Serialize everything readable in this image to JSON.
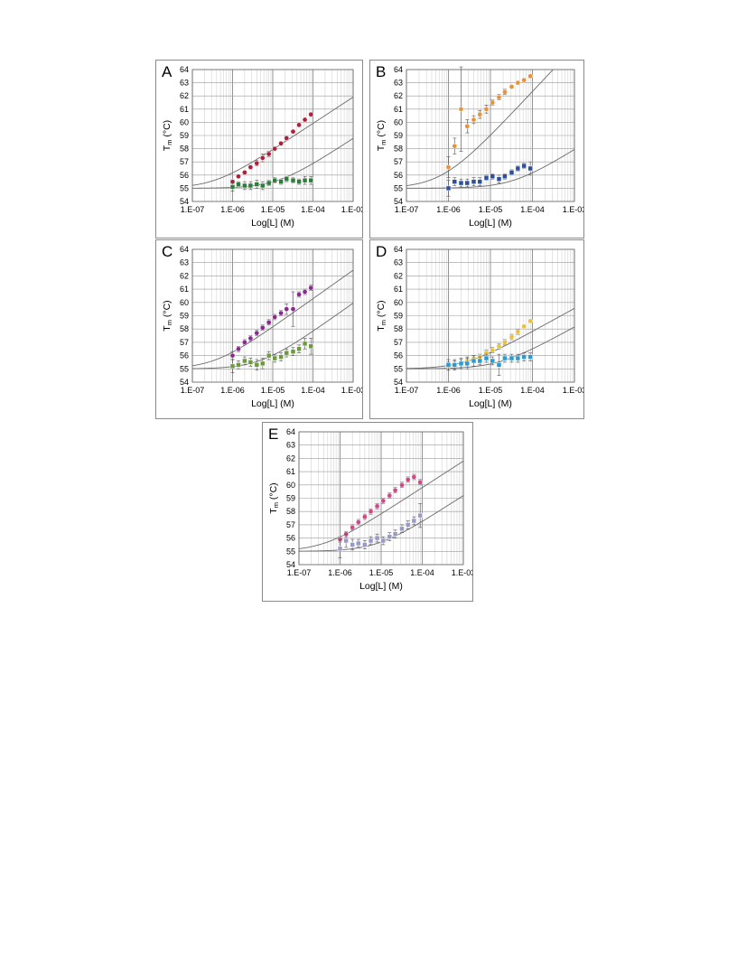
{
  "chart_data": [
    {
      "panel_label": "A",
      "type": "scatter",
      "xscale": "log",
      "xlim": [
        1e-07,
        0.001
      ],
      "ylim": [
        54,
        64
      ],
      "yticks": [
        "54",
        "55",
        "56",
        "57",
        "58",
        "59",
        "60",
        "61",
        "62",
        "63",
        "64"
      ],
      "xticks": [
        "1.E-07",
        "1.E-06",
        "1.E-05",
        "1.E-04",
        "1.E-03"
      ],
      "ylabel": "T",
      "ylabel_sub": "m",
      "ylabel_unit": " (°C)",
      "xlabel": "Log[L] (M)",
      "grid": true,
      "series": [
        {
          "marker": "circle",
          "color": "#b0203a",
          "x": [
            1e-06,
            1.4e-06,
            2e-06,
            2.8e-06,
            4e-06,
            5.6e-06,
            8e-06,
            1.12e-05,
            1.6e-05,
            2.2e-05,
            3.2e-05,
            4.5e-05,
            6.3e-05,
            8.9e-05
          ],
          "y": [
            55.5,
            55.9,
            56.2,
            56.6,
            56.9,
            57.3,
            57.6,
            58.0,
            58.4,
            58.8,
            59.3,
            59.8,
            60.2,
            60.6
          ],
          "err": [
            0.15,
            0.1,
            0.1,
            0.15,
            0.2,
            0.3,
            0.2,
            0.1,
            0.1,
            0.15,
            0.1,
            0.1,
            0.1,
            0.1
          ]
        },
        {
          "marker": "square",
          "color": "#2e7d3a",
          "x": [
            1e-06,
            1.4e-06,
            2e-06,
            2.8e-06,
            4e-06,
            5.6e-06,
            8e-06,
            1.12e-05,
            1.6e-05,
            2.2e-05,
            3.2e-05,
            4.5e-05,
            6.3e-05,
            8.9e-05
          ],
          "y": [
            55.1,
            55.3,
            55.2,
            55.2,
            55.3,
            55.2,
            55.4,
            55.6,
            55.5,
            55.7,
            55.6,
            55.5,
            55.6,
            55.6
          ],
          "err": [
            0.3,
            0.2,
            0.3,
            0.3,
            0.3,
            0.3,
            0.2,
            0.2,
            0.2,
            0.2,
            0.2,
            0.2,
            0.3,
            0.3
          ]
        }
      ],
      "fit_curves": [
        {
          "baseline": 55.0,
          "x0": 3.5e-07,
          "slope": 2.0
        },
        {
          "baseline": 55.0,
          "x0": 1.3e-05,
          "slope": 2.0
        }
      ]
    },
    {
      "panel_label": "B",
      "type": "scatter",
      "xscale": "log",
      "xlim": [
        1e-07,
        0.001
      ],
      "ylim": [
        54,
        64
      ],
      "yticks": [
        "54",
        "55",
        "56",
        "57",
        "58",
        "59",
        "60",
        "61",
        "62",
        "63",
        "64"
      ],
      "xticks": [
        "1.E-07",
        "1.E-06",
        "1.E-05",
        "1.E-04",
        "1.E-03"
      ],
      "ylabel": "T",
      "ylabel_sub": "m",
      "ylabel_unit": " (°C)",
      "xlabel": "Log[L] (M)",
      "grid": true,
      "series": [
        {
          "marker": "circle",
          "color": "#e8923a",
          "x": [
            1e-06,
            1.4e-06,
            2e-06,
            2.8e-06,
            4e-06,
            5.6e-06,
            8e-06,
            1.12e-05,
            1.6e-05,
            2.2e-05,
            3.2e-05,
            4.5e-05,
            6.3e-05,
            8.9e-05
          ],
          "y": [
            56.6,
            58.2,
            61.0,
            59.7,
            60.2,
            60.6,
            61.0,
            61.5,
            61.9,
            62.3,
            62.7,
            63.0,
            63.2,
            63.5
          ],
          "err": [
            0.8,
            0.6,
            3.2,
            0.5,
            0.3,
            0.3,
            0.3,
            0.2,
            0.2,
            0.2,
            0.1,
            0.1,
            0.1,
            0.1
          ]
        },
        {
          "marker": "square",
          "color": "#2e4f9a",
          "x": [
            1e-06,
            1.4e-06,
            2e-06,
            2.8e-06,
            4e-06,
            5.6e-06,
            8e-06,
            1.12e-05,
            1.6e-05,
            2.2e-05,
            3.2e-05,
            4.5e-05,
            6.3e-05,
            8.9e-05
          ],
          "y": [
            55.0,
            55.5,
            55.4,
            55.4,
            55.5,
            55.5,
            55.8,
            55.9,
            55.7,
            55.9,
            56.2,
            56.5,
            56.7,
            56.5
          ],
          "err": [
            0.6,
            0.3,
            0.3,
            0.3,
            0.3,
            0.3,
            0.2,
            0.2,
            0.3,
            0.2,
            0.2,
            0.2,
            0.2,
            0.5
          ]
        }
      ],
      "fit_curves": [
        {
          "baseline": 55.0,
          "x0": 7e-07,
          "slope": 3.4
        },
        {
          "baseline": 55.0,
          "x0": 3.5e-05,
          "slope": 2.0
        }
      ]
    },
    {
      "panel_label": "C",
      "type": "scatter",
      "xscale": "log",
      "xlim": [
        1e-07,
        0.001
      ],
      "ylim": [
        54,
        64
      ],
      "yticks": [
        "54",
        "55",
        "56",
        "57",
        "58",
        "59",
        "60",
        "61",
        "62",
        "63",
        "64"
      ],
      "xticks": [
        "1.E-07",
        "1.E-06",
        "1.E-05",
        "1.E-04",
        "1.E-03"
      ],
      "ylabel": "T",
      "ylabel_sub": "m",
      "ylabel_unit": " (°C)",
      "xlabel": "Log[L] (M)",
      "grid": true,
      "series": [
        {
          "marker": "circle",
          "color": "#8a2a8e",
          "x": [
            1e-06,
            1.4e-06,
            2e-06,
            2.8e-06,
            4e-06,
            5.6e-06,
            8e-06,
            1.12e-05,
            1.6e-05,
            2.2e-05,
            3.2e-05,
            4.5e-05,
            6.3e-05,
            8.9e-05
          ],
          "y": [
            56.0,
            56.5,
            57.0,
            57.3,
            57.7,
            58.1,
            58.5,
            58.9,
            59.2,
            59.5,
            59.5,
            60.6,
            60.8,
            61.1
          ],
          "err": [
            0.3,
            0.2,
            0.2,
            0.2,
            0.2,
            0.2,
            0.2,
            0.2,
            0.2,
            0.4,
            1.3,
            0.2,
            0.2,
            0.2
          ]
        },
        {
          "marker": "square",
          "color": "#6e9a3e",
          "x": [
            1e-06,
            1.4e-06,
            2e-06,
            2.8e-06,
            4e-06,
            5.6e-06,
            8e-06,
            1.12e-05,
            1.6e-05,
            2.2e-05,
            3.2e-05,
            4.5e-05,
            6.3e-05,
            8.9e-05
          ],
          "y": [
            55.2,
            55.3,
            55.6,
            55.5,
            55.3,
            55.4,
            56.0,
            55.8,
            55.9,
            56.2,
            56.3,
            56.5,
            56.9,
            56.7
          ],
          "err": [
            0.5,
            0.3,
            0.3,
            0.3,
            0.4,
            0.4,
            0.3,
            0.3,
            0.3,
            0.3,
            0.3,
            0.3,
            0.4,
            0.6
          ]
        }
      ],
      "fit_curves": [
        {
          "baseline": 55.0,
          "x0": 3.5e-07,
          "slope": 2.15
        },
        {
          "baseline": 55.0,
          "x0": 5e-06,
          "slope": 2.15
        }
      ]
    },
    {
      "panel_label": "D",
      "type": "scatter",
      "xscale": "log",
      "xlim": [
        1e-07,
        0.001
      ],
      "ylim": [
        54,
        64
      ],
      "yticks": [
        "54",
        "55",
        "56",
        "57",
        "58",
        "59",
        "60",
        "61",
        "62",
        "63",
        "64"
      ],
      "xticks": [
        "1.E-07",
        "1.E-06",
        "1.E-05",
        "1.E-04",
        "1.E-03"
      ],
      "ylabel": "T",
      "ylabel_sub": "m",
      "ylabel_unit": " (°C)",
      "xlabel": "Log[L] (M)",
      "grid": true,
      "series": [
        {
          "marker": "circle",
          "color": "#e8c23a",
          "x": [
            1e-06,
            1.4e-06,
            2e-06,
            2.8e-06,
            4e-06,
            5.6e-06,
            8e-06,
            1.12e-05,
            1.6e-05,
            2.2e-05,
            3.2e-05,
            4.5e-05,
            6.3e-05,
            8.9e-05
          ],
          "y": [
            55.2,
            55.3,
            55.4,
            55.6,
            55.8,
            55.9,
            56.2,
            56.4,
            56.7,
            57.0,
            57.4,
            57.8,
            58.2,
            58.6
          ],
          "err": [
            0.3,
            0.3,
            0.3,
            0.3,
            0.2,
            0.2,
            0.2,
            0.2,
            0.2,
            0.2,
            0.2,
            0.2,
            0.1,
            0.1
          ]
        },
        {
          "marker": "square",
          "color": "#2a9ad0",
          "x": [
            1e-06,
            1.4e-06,
            2e-06,
            2.8e-06,
            4e-06,
            5.6e-06,
            8e-06,
            1.12e-05,
            1.6e-05,
            2.2e-05,
            3.2e-05,
            4.5e-05,
            6.3e-05,
            8.9e-05
          ],
          "y": [
            55.3,
            55.3,
            55.4,
            55.4,
            55.6,
            55.6,
            55.8,
            55.6,
            55.3,
            55.8,
            55.8,
            55.8,
            55.9,
            55.9
          ],
          "err": [
            0.4,
            0.4,
            0.4,
            0.4,
            0.4,
            0.3,
            0.3,
            0.3,
            0.8,
            0.3,
            0.3,
            0.3,
            0.3,
            0.3
          ]
        }
      ],
      "fit_curves": [
        {
          "baseline": 55.0,
          "x0": 2.5e-06,
          "slope": 1.75
        },
        {
          "baseline": 55.0,
          "x0": 1.6e-05,
          "slope": 1.75
        }
      ]
    },
    {
      "panel_label": "E",
      "type": "scatter",
      "xscale": "log",
      "xlim": [
        1e-07,
        0.001
      ],
      "ylim": [
        54,
        64
      ],
      "yticks": [
        "54",
        "55",
        "56",
        "57",
        "58",
        "59",
        "60",
        "61",
        "62",
        "63",
        "64"
      ],
      "xticks": [
        "1.E-07",
        "1.E-06",
        "1.E-05",
        "1.E-04",
        "1.E-03"
      ],
      "ylabel": "T",
      "ylabel_sub": "m",
      "ylabel_unit": " (°C)",
      "xlabel": "Log[L] (M)",
      "grid": true,
      "series": [
        {
          "marker": "circle",
          "color": "#d0488a",
          "x": [
            1e-06,
            1.4e-06,
            2e-06,
            2.8e-06,
            4e-06,
            5.6e-06,
            8e-06,
            1.12e-05,
            1.6e-05,
            2.2e-05,
            3.2e-05,
            4.5e-05,
            6.3e-05,
            8.9e-05
          ],
          "y": [
            55.9,
            56.3,
            56.8,
            57.2,
            57.6,
            58.0,
            58.4,
            58.8,
            59.2,
            59.6,
            60.0,
            60.4,
            60.6,
            60.2
          ],
          "err": [
            0.2,
            0.2,
            0.2,
            0.2,
            0.2,
            0.2,
            0.2,
            0.2,
            0.2,
            0.2,
            0.2,
            0.2,
            0.2,
            0.2
          ]
        },
        {
          "marker": "square",
          "color": "#9a9ac8",
          "x": [
            1e-06,
            1.4e-06,
            2e-06,
            2.8e-06,
            4e-06,
            5.6e-06,
            8e-06,
            1.12e-05,
            1.6e-05,
            2.2e-05,
            3.2e-05,
            4.5e-05,
            6.3e-05,
            8.9e-05
          ],
          "y": [
            55.2,
            55.8,
            55.5,
            55.6,
            55.5,
            55.8,
            56.0,
            55.8,
            56.1,
            56.3,
            56.7,
            57.0,
            57.3,
            57.7
          ],
          "err": [
            0.7,
            0.5,
            0.4,
            0.3,
            0.3,
            0.3,
            0.3,
            0.3,
            0.3,
            0.3,
            0.3,
            0.3,
            0.3,
            0.9
          ]
        }
      ],
      "fit_curves": [
        {
          "baseline": 55.0,
          "x0": 4e-07,
          "slope": 2.0
        },
        {
          "baseline": 55.0,
          "x0": 8e-06,
          "slope": 2.0
        }
      ]
    }
  ]
}
